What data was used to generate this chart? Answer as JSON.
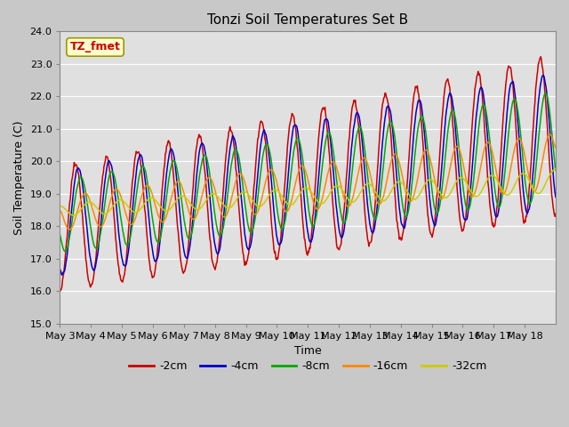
{
  "title": "Tonzi Soil Temperatures Set B",
  "xlabel": "Time",
  "ylabel": "Soil Temperature (C)",
  "ylim": [
    15.0,
    24.0
  ],
  "yticks": [
    15.0,
    16.0,
    17.0,
    18.0,
    19.0,
    20.0,
    21.0,
    22.0,
    23.0,
    24.0
  ],
  "xtick_labels": [
    "May 3",
    "May 4",
    "May 5",
    "May 6",
    "May 7",
    "May 8",
    "May 9",
    "May 10",
    "May 11",
    "May 12",
    "May 13",
    "May 14",
    "May 15",
    "May 16",
    "May 17",
    "May 18"
  ],
  "series_labels": [
    "-2cm",
    "-4cm",
    "-8cm",
    "-16cm",
    "-32cm"
  ],
  "series_colors": [
    "#cc0000",
    "#0000cc",
    "#00aa00",
    "#ff8800",
    "#cccc00"
  ],
  "legend_label": "TZ_fmet",
  "legend_color": "#cc0000",
  "legend_bg": "#ffffcc",
  "legend_edge": "#999900",
  "fig_bg": "#c8c8c8",
  "plot_bg": "#e0e0e0",
  "grid_color": "#ffffff",
  "n_days": 16,
  "points_per_day": 48,
  "base_temp": 18.2,
  "trend_slope": 0.18
}
